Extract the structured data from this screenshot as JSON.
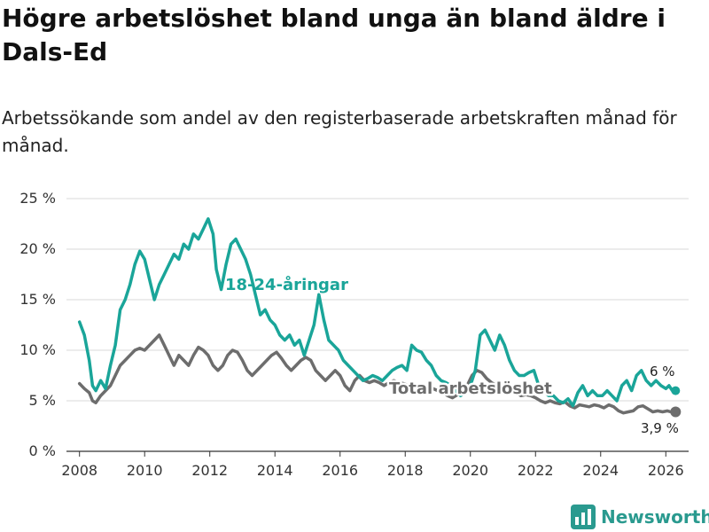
{
  "title": "Högre arbetslöshet bland unga än bland äldre i Dals-Ed",
  "subtitle": "Arbetssökande som andel av den registerbaserade arbetskraften månad för månad.",
  "brand": "Newsworthy",
  "colors": {
    "youth": "#1aa599",
    "total": "#6d6d6d",
    "grid": "#d9d9d9",
    "brand": "#2a9a8f"
  },
  "chart_data": {
    "type": "line",
    "title": "Högre arbetslöshet bland unga än bland äldre i Dals-Ed",
    "xlabel": "",
    "ylabel": "",
    "ylim": [
      0,
      25
    ],
    "xlim": [
      2007.6,
      2026.7
    ],
    "yticks": [
      0,
      5,
      10,
      15,
      20,
      25
    ],
    "ytick_labels": [
      "0 %",
      "5 %",
      "10 %",
      "15 %",
      "20 %",
      "25 %"
    ],
    "xticks": [
      2008,
      2010,
      2012,
      2014,
      2016,
      2018,
      2020,
      2022,
      2024,
      2026
    ],
    "xtick_labels": [
      "2008",
      "2010",
      "2012",
      "2014",
      "2016",
      "2018",
      "2020",
      "2022",
      "2024",
      "2026"
    ],
    "grid": true,
    "series": [
      {
        "name": "18-24-åringar",
        "label": "18-24-åringar",
        "end_label": "6 %",
        "x": [
          2008.0,
          2008.15,
          2008.3,
          2008.4,
          2008.5,
          2008.65,
          2008.8,
          2008.95,
          2009.1,
          2009.25,
          2009.4,
          2009.55,
          2009.7,
          2009.85,
          2010.0,
          2010.15,
          2010.3,
          2010.45,
          2010.6,
          2010.75,
          2010.9,
          2011.05,
          2011.2,
          2011.35,
          2011.5,
          2011.65,
          2011.8,
          2011.95,
          2012.1,
          2012.2,
          2012.35,
          2012.5,
          2012.65,
          2012.8,
          2012.95,
          2013.1,
          2013.25,
          2013.4,
          2013.55,
          2013.7,
          2013.85,
          2014.0,
          2014.15,
          2014.3,
          2014.45,
          2014.6,
          2014.75,
          2014.9,
          2015.05,
          2015.2,
          2015.35,
          2015.5,
          2015.65,
          2015.8,
          2015.95,
          2016.1,
          2016.25,
          2016.4,
          2016.55,
          2016.7,
          2016.85,
          2017.0,
          2017.15,
          2017.3,
          2017.45,
          2017.6,
          2017.75,
          2017.9,
          2018.05,
          2018.2,
          2018.35,
          2018.5,
          2018.65,
          2018.8,
          2018.95,
          2019.1,
          2019.25,
          2019.4,
          2019.55,
          2019.7,
          2019.85,
          2020.0,
          2020.15,
          2020.3,
          2020.45,
          2020.6,
          2020.75,
          2020.9,
          2021.05,
          2021.2,
          2021.35,
          2021.5,
          2021.65,
          2021.8,
          2021.95,
          2022.1,
          2022.25,
          2022.4,
          2022.55,
          2022.7,
          2022.85,
          2023.0,
          2023.15,
          2023.3,
          2023.45,
          2023.6,
          2023.75,
          2023.9,
          2024.05,
          2024.2,
          2024.35,
          2024.5,
          2024.65,
          2024.8,
          2024.95,
          2025.1,
          2025.25,
          2025.4,
          2025.55,
          2025.7,
          2025.85,
          2026.0,
          2026.1,
          2026.2,
          2026.3
        ],
        "values": [
          12.8,
          11.5,
          9.0,
          6.5,
          6.0,
          7.0,
          6.2,
          8.5,
          10.5,
          14.0,
          15.0,
          16.5,
          18.5,
          19.8,
          19.0,
          17.0,
          15.0,
          16.5,
          17.5,
          18.5,
          19.5,
          19.0,
          20.5,
          20.0,
          21.5,
          21.0,
          22.0,
          23.0,
          21.5,
          18.0,
          16.0,
          18.5,
          20.5,
          21.0,
          20.0,
          19.0,
          17.5,
          15.5,
          13.5,
          14.0,
          13.0,
          12.5,
          11.5,
          11.0,
          11.5,
          10.5,
          11.0,
          9.5,
          11.0,
          12.5,
          15.5,
          13.0,
          11.0,
          10.5,
          10.0,
          9.0,
          8.5,
          8.0,
          7.5,
          7.0,
          7.2,
          7.5,
          7.3,
          7.0,
          7.5,
          8.0,
          8.3,
          8.5,
          8.0,
          10.5,
          10.0,
          9.8,
          9.0,
          8.5,
          7.5,
          7.0,
          6.8,
          6.5,
          6.0,
          5.5,
          5.8,
          6.5,
          8.0,
          11.5,
          12.0,
          11.0,
          10.0,
          11.5,
          10.5,
          9.0,
          8.0,
          7.5,
          7.5,
          7.8,
          8.0,
          6.5,
          6.0,
          5.5,
          5.5,
          5.0,
          4.8,
          5.2,
          4.5,
          5.8,
          6.5,
          5.5,
          6.0,
          5.5,
          5.5,
          6.0,
          5.5,
          5.0,
          6.5,
          7.0,
          6.0,
          7.5,
          8.0,
          7.0,
          6.5,
          7.0,
          6.5,
          6.2,
          6.5,
          6.0,
          6.0
        ]
      },
      {
        "name": "Total arbetslöshet",
        "label": "Total arbetslöshet",
        "end_label": "3,9 %",
        "x": [
          2008.0,
          2008.15,
          2008.3,
          2008.4,
          2008.5,
          2008.65,
          2008.8,
          2008.95,
          2009.1,
          2009.25,
          2009.4,
          2009.55,
          2009.7,
          2009.85,
          2010.0,
          2010.15,
          2010.3,
          2010.45,
          2010.6,
          2010.75,
          2010.9,
          2011.05,
          2011.2,
          2011.35,
          2011.5,
          2011.65,
          2011.8,
          2011.95,
          2012.1,
          2012.25,
          2012.4,
          2012.55,
          2012.7,
          2012.85,
          2013.0,
          2013.15,
          2013.3,
          2013.45,
          2013.6,
          2013.75,
          2013.9,
          2014.05,
          2014.2,
          2014.35,
          2014.5,
          2014.65,
          2014.8,
          2014.95,
          2015.1,
          2015.25,
          2015.4,
          2015.55,
          2015.7,
          2015.85,
          2016.0,
          2016.15,
          2016.3,
          2016.45,
          2016.6,
          2016.75,
          2016.9,
          2017.05,
          2017.2,
          2017.35,
          2017.5,
          2017.65,
          2017.8,
          2017.95,
          2018.1,
          2018.25,
          2018.4,
          2018.55,
          2018.7,
          2018.85,
          2019.0,
          2019.15,
          2019.3,
          2019.45,
          2019.6,
          2019.75,
          2019.9,
          2020.05,
          2020.2,
          2020.35,
          2020.5,
          2020.65,
          2020.8,
          2020.95,
          2021.1,
          2021.25,
          2021.4,
          2021.55,
          2021.7,
          2021.85,
          2022.0,
          2022.15,
          2022.3,
          2022.45,
          2022.6,
          2022.75,
          2022.9,
          2023.05,
          2023.2,
          2023.35,
          2023.5,
          2023.65,
          2023.8,
          2023.95,
          2024.1,
          2024.25,
          2024.4,
          2024.55,
          2024.7,
          2024.85,
          2025.0,
          2025.15,
          2025.3,
          2025.45,
          2025.6,
          2025.75,
          2025.9,
          2026.05,
          2026.15,
          2026.3
        ],
        "values": [
          6.7,
          6.2,
          5.8,
          5.0,
          4.8,
          5.5,
          6.0,
          6.5,
          7.5,
          8.5,
          9.0,
          9.5,
          10.0,
          10.2,
          10.0,
          10.5,
          11.0,
          11.5,
          10.5,
          9.5,
          8.5,
          9.5,
          9.0,
          8.5,
          9.5,
          10.3,
          10.0,
          9.5,
          8.5,
          8.0,
          8.5,
          9.5,
          10.0,
          9.8,
          9.0,
          8.0,
          7.5,
          8.0,
          8.5,
          9.0,
          9.5,
          9.8,
          9.2,
          8.5,
          8.0,
          8.5,
          9.0,
          9.3,
          9.0,
          8.0,
          7.5,
          7.0,
          7.5,
          8.0,
          7.5,
          6.5,
          6.0,
          7.0,
          7.5,
          7.0,
          6.8,
          7.0,
          6.8,
          6.5,
          6.8,
          7.0,
          6.8,
          6.7,
          6.5,
          6.3,
          6.5,
          6.3,
          6.0,
          6.2,
          6.0,
          5.8,
          5.5,
          5.3,
          5.6,
          5.8,
          6.5,
          7.5,
          8.0,
          7.8,
          7.2,
          6.8,
          6.5,
          6.6,
          6.3,
          6.0,
          5.8,
          5.5,
          5.6,
          5.5,
          5.3,
          5.0,
          4.8,
          5.0,
          4.8,
          4.7,
          4.9,
          4.5,
          4.3,
          4.6,
          4.5,
          4.4,
          4.6,
          4.5,
          4.3,
          4.6,
          4.4,
          4.0,
          3.8,
          3.9,
          4.0,
          4.4,
          4.5,
          4.2,
          3.9,
          4.0,
          3.9,
          4.0,
          3.9,
          3.9
        ]
      }
    ]
  }
}
